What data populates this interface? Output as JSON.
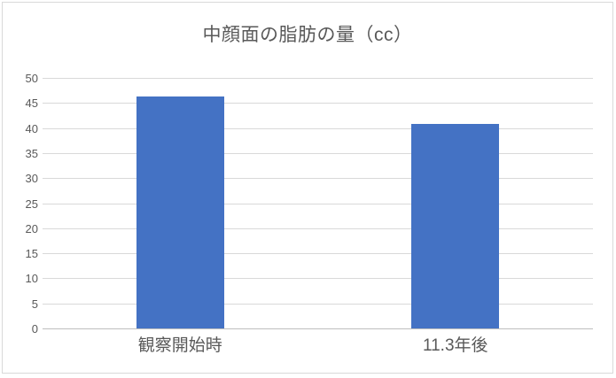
{
  "chart": {
    "frame_border_color": "#D9D9D9",
    "background_color": "#FFFFFF"
  },
  "chart_data": {
    "type": "bar",
    "title": "中顔面の脂肪の量（cc）",
    "categories": [
      "観察開始時",
      "11.3年後"
    ],
    "values": [
      46.3,
      40.8
    ],
    "xlabel": "",
    "ylabel": "",
    "ylim": [
      0,
      50
    ],
    "ytick_step": 5,
    "yticks": [
      0,
      5,
      10,
      15,
      20,
      25,
      30,
      35,
      40,
      45,
      50
    ],
    "grid": true,
    "legend": "none",
    "bar_color": "#4472C4",
    "gridline_color": "#D9D9D9",
    "axis_line_color": "#BFBFBF",
    "text_color": "#595959"
  }
}
